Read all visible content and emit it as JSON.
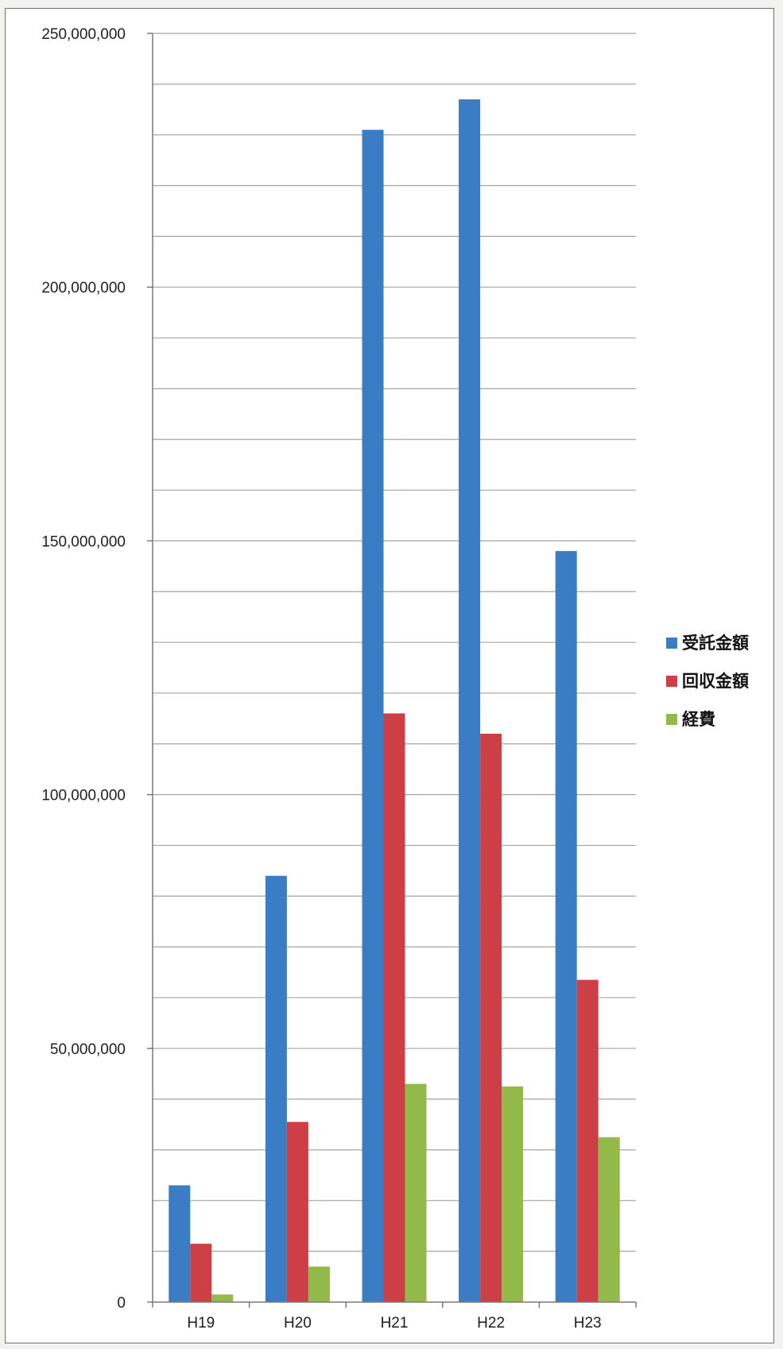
{
  "chart_data": {
    "type": "bar",
    "categories": [
      "H19",
      "H20",
      "H21",
      "H22",
      "H23"
    ],
    "series": [
      {
        "name": "受託金額",
        "color": "#3b7dc4",
        "values": [
          23000000,
          84000000,
          231000000,
          237000000,
          148000000
        ]
      },
      {
        "name": "回収金額",
        "color": "#cc3f46",
        "values": [
          11500000,
          35500000,
          116000000,
          112000000,
          63500000
        ]
      },
      {
        "name": "経費",
        "color": "#92b94a",
        "values": [
          1500000,
          7000000,
          43000000,
          42500000,
          32500000
        ]
      }
    ],
    "ylim": [
      0,
      250000000
    ],
    "ytick_labels": [
      "0",
      "50,000,000",
      "100,000,000",
      "150,000,000",
      "200,000,000",
      "250,000,000"
    ],
    "ytick_values": [
      0,
      50000000,
      100000000,
      150000000,
      200000000,
      250000000
    ],
    "minor_grid_step": 10000000,
    "grid": true,
    "legend_position": "right",
    "title": "",
    "xlabel": "",
    "ylabel": ""
  }
}
